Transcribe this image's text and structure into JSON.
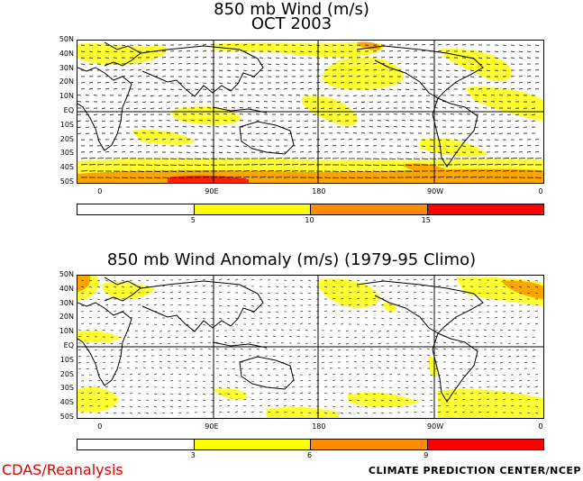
{
  "panels": [
    {
      "id": "wind",
      "title_line1": "850 mb Wind (m/s)",
      "title_line2": "OCT 2003",
      "lat_labels": [
        "50N",
        "40N",
        "30N",
        "20N",
        "10N",
        "EQ",
        "10S",
        "20S",
        "30S",
        "40S",
        "50S"
      ],
      "lon_labels": [
        "0",
        "90E",
        "180",
        "90W",
        "0"
      ],
      "colorbar": {
        "labels": [
          "5",
          "10",
          "15"
        ],
        "colors": [
          "#ffffff",
          "#ffff00",
          "#ff8c00",
          "#ff0000"
        ]
      }
    },
    {
      "id": "anomaly",
      "title_line1": "850 mb Wind Anomaly (m/s) (1979-95 Climo)",
      "lat_labels": [
        "50N",
        "40N",
        "30N",
        "20N",
        "10N",
        "EQ",
        "10S",
        "20S",
        "30S",
        "40S",
        "50S"
      ],
      "lon_labels": [
        "0",
        "90E",
        "180",
        "90W",
        "0"
      ],
      "colorbar": {
        "labels": [
          "3",
          "6",
          "9"
        ],
        "colors": [
          "#ffffff",
          "#ffff00",
          "#ff8c00",
          "#ff0000"
        ]
      }
    }
  ],
  "footer": {
    "left": "CDAS/Reanalysis",
    "right": "CLIMATE PREDICTION CENTER/NCEP"
  },
  "colors": {
    "yellow": "#ffff33",
    "orange": "#ffa500",
    "red": "#ff2200",
    "contour": "#000000"
  }
}
